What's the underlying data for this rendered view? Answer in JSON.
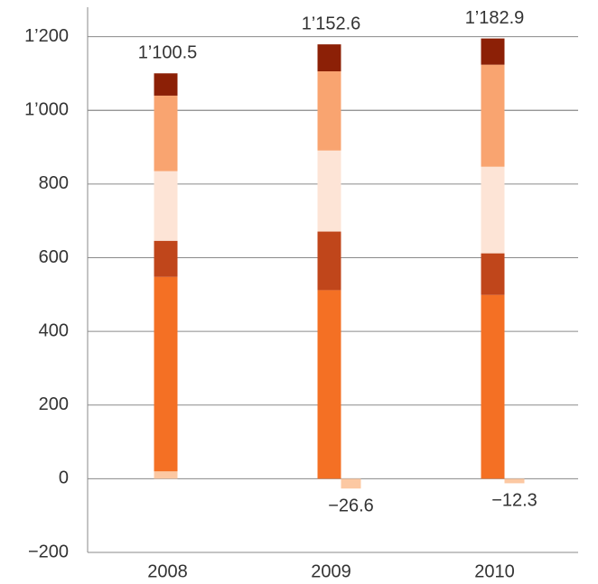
{
  "chart_data": {
    "type": "stacked_bar",
    "categories": [
      "2008",
      "2009",
      "2010"
    ],
    "series": [
      {
        "color": "#fcc8a2",
        "values": [
          20,
          -26.6,
          -12.3
        ],
        "value_labels": [
          null,
          "−26.6",
          "−12.3"
        ]
      },
      {
        "color": "#f47024",
        "values": [
          528,
          512,
          499
        ]
      },
      {
        "color": "#c0461b",
        "values": [
          98,
          159,
          113
        ]
      },
      {
        "color": "#fde4d6",
        "values": [
          189,
          220,
          235
        ]
      },
      {
        "color": "#f9a470",
        "values": [
          205,
          215,
          277
        ]
      },
      {
        "color": "#8c2006",
        "values": [
          60.5,
          73.2,
          71.2
        ]
      }
    ],
    "totals": [
      1100.5,
      1152.6,
      1182.9
    ],
    "total_labels": [
      "1’100.5",
      "1’152.6",
      "1’182.9"
    ],
    "ylim": [
      -200,
      1280
    ],
    "yticks": [
      {
        "value": -200,
        "label": "−200"
      },
      0,
      200,
      400,
      600,
      800,
      1000,
      {
        "value": 1200,
        "label": "1’200"
      },
      {
        "value": 1000,
        "label": "1’000"
      }
    ],
    "grid": true
  }
}
